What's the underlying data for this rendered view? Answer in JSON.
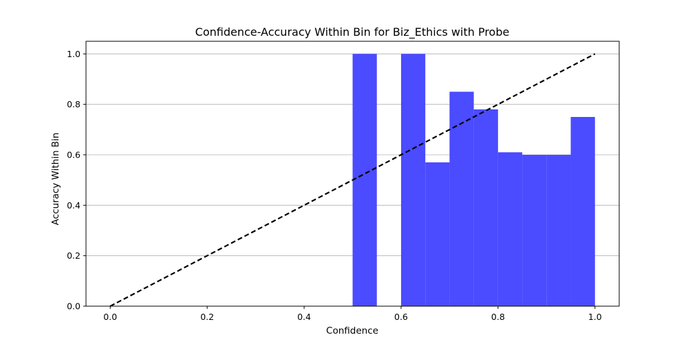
{
  "chart_data": {
    "type": "bar",
    "title": "Confidence-Accuracy Within Bin for Biz_Ethics with Probe",
    "xlabel": "Confidence",
    "ylabel": "Accuracy Within Bin",
    "xlim": [
      -0.05,
      1.05
    ],
    "ylim": [
      0,
      1.05
    ],
    "xticks": [
      0.0,
      0.2,
      0.4,
      0.6,
      0.8,
      1.0
    ],
    "xtick_labels": [
      "0.0",
      "0.2",
      "0.4",
      "0.6",
      "0.8",
      "1.0"
    ],
    "yticks": [
      0.0,
      0.2,
      0.4,
      0.6,
      0.8,
      1.0
    ],
    "ytick_labels": [
      "0.0",
      "0.2",
      "0.4",
      "0.6",
      "0.8",
      "1.0"
    ],
    "grid": "y",
    "bin_width": 0.05,
    "bins": [
      {
        "start": 0.5,
        "value": 1.0
      },
      {
        "start": 0.6,
        "value": 1.0
      },
      {
        "start": 0.65,
        "value": 0.57
      },
      {
        "start": 0.7,
        "value": 0.85
      },
      {
        "start": 0.75,
        "value": 0.78
      },
      {
        "start": 0.8,
        "value": 0.61
      },
      {
        "start": 0.85,
        "value": 0.6
      },
      {
        "start": 0.9,
        "value": 0.6
      },
      {
        "start": 0.95,
        "value": 0.75
      }
    ],
    "bar_color": "#4b4bff",
    "reference_line": {
      "x": [
        0,
        1
      ],
      "y": [
        0,
        1
      ],
      "style": "dashed",
      "color": "#000000"
    }
  }
}
